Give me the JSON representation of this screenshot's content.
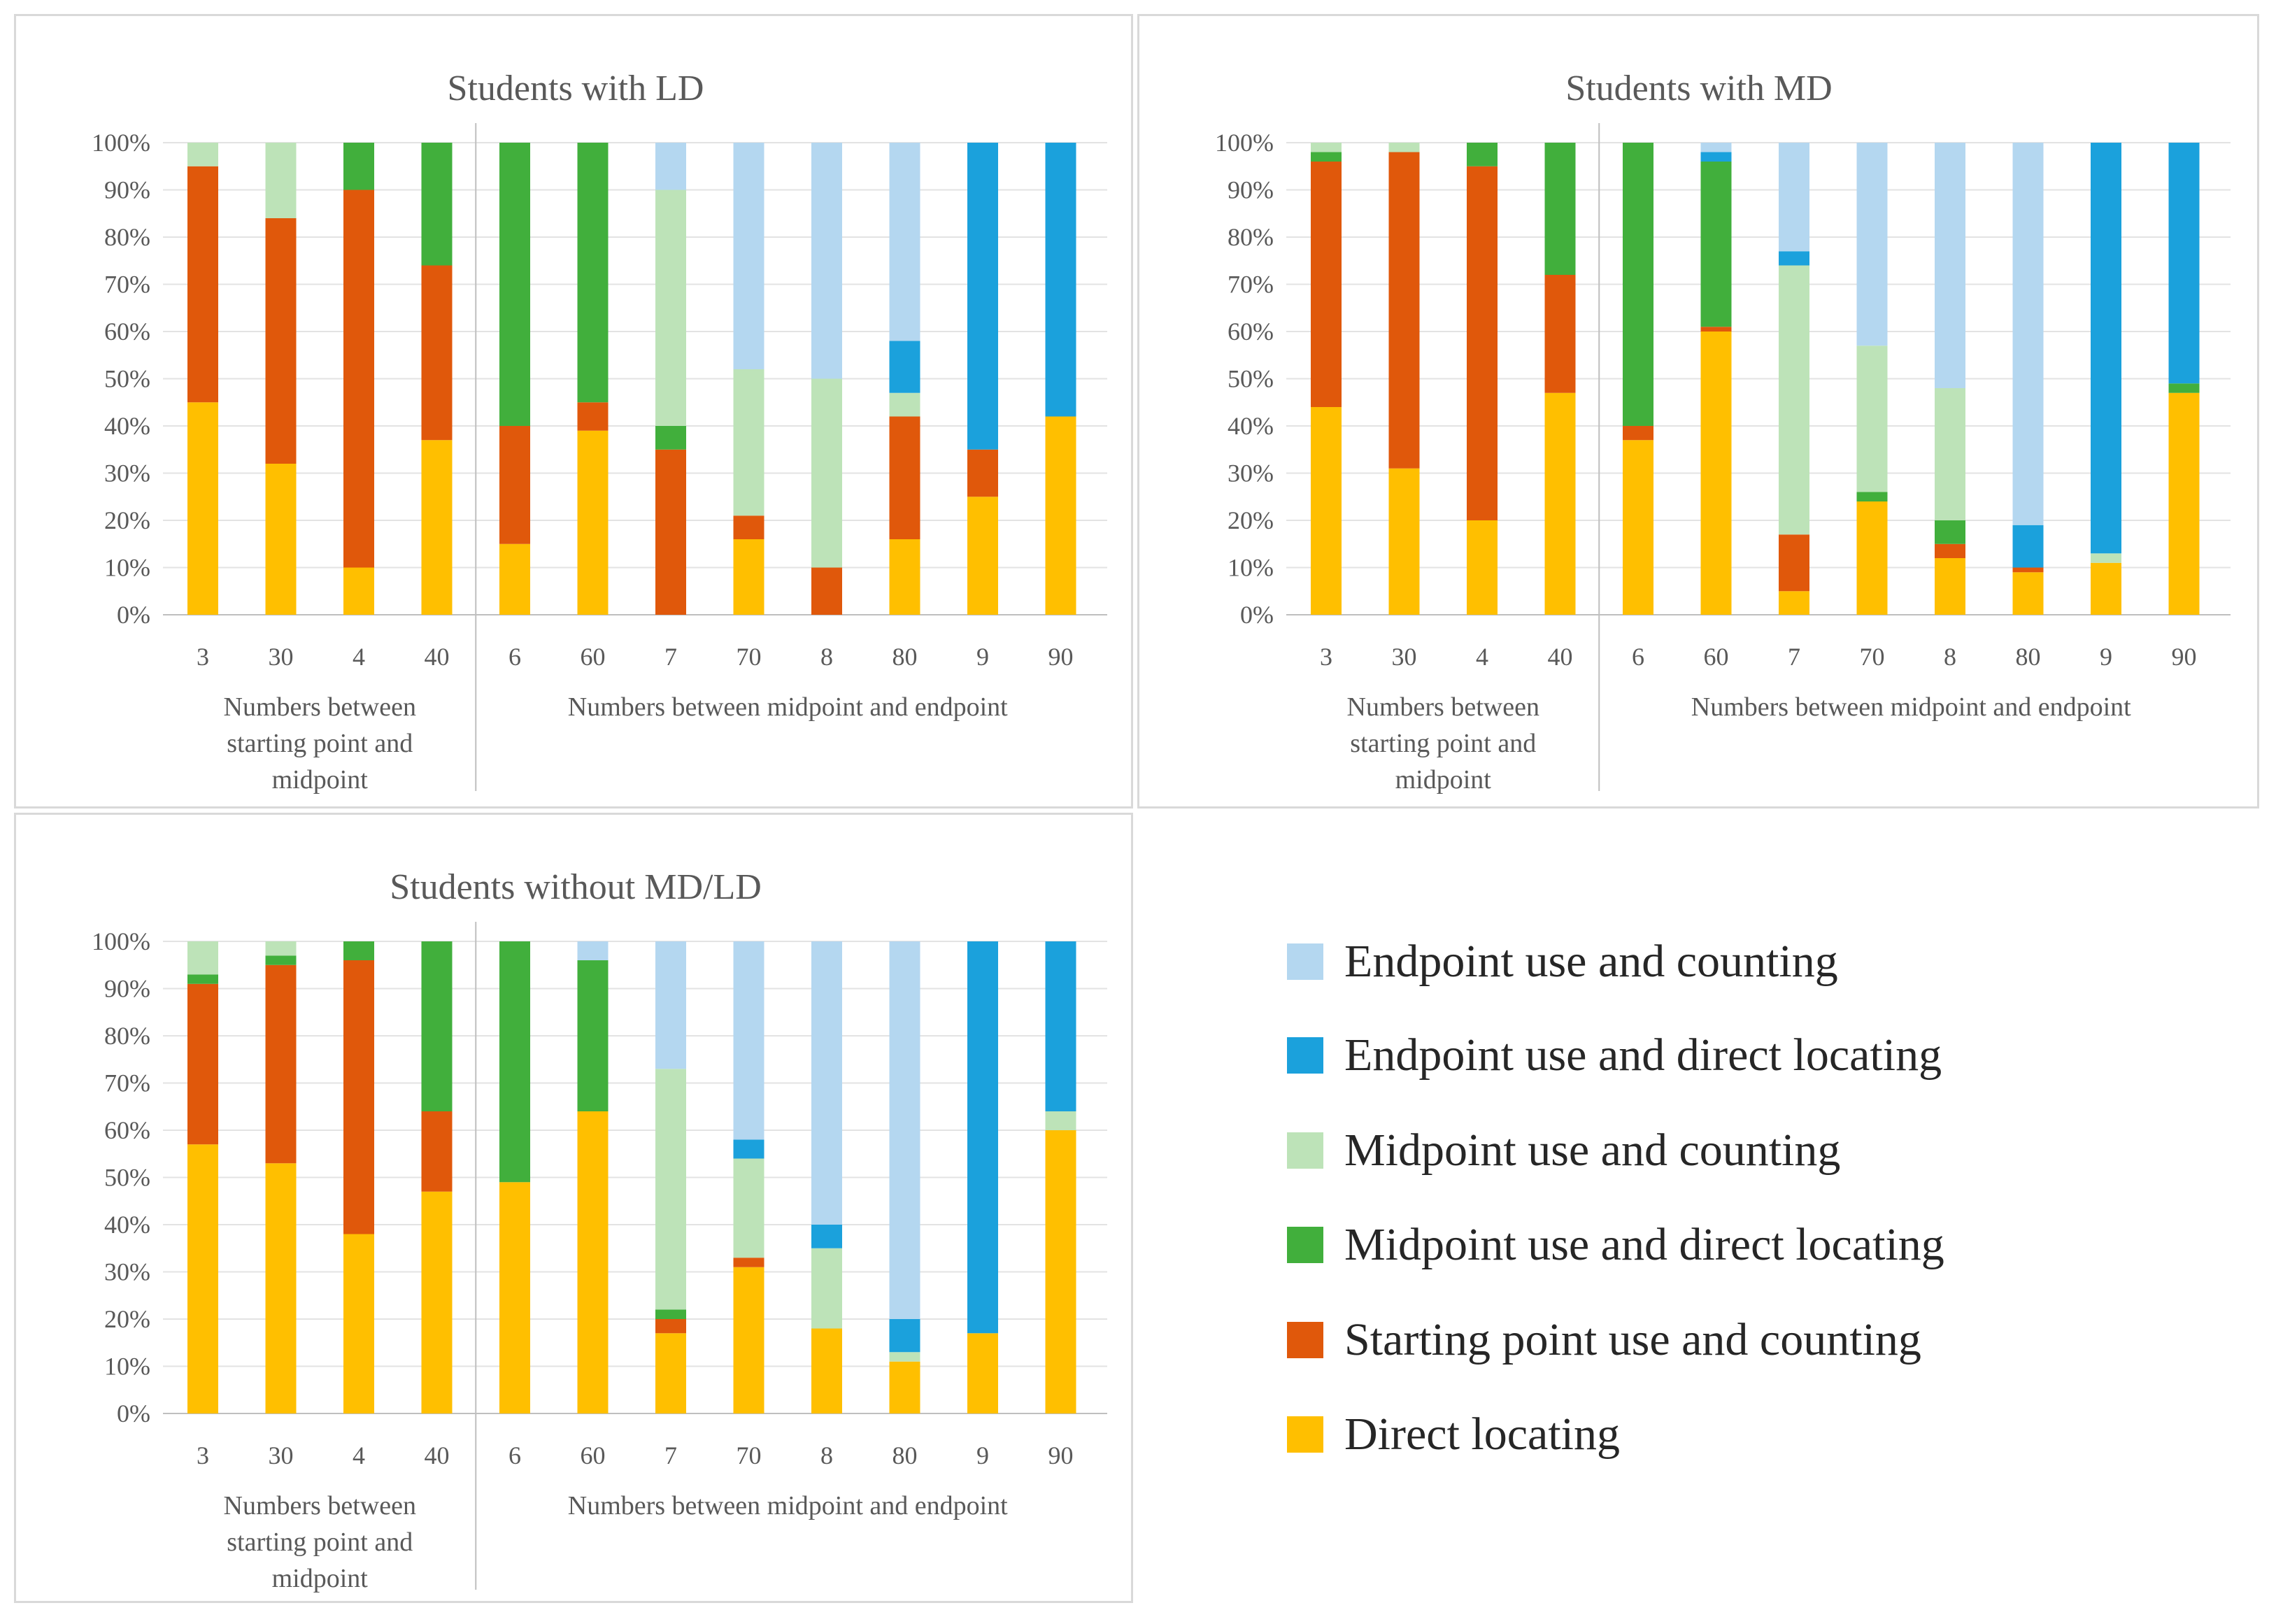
{
  "chart_data": [
    {
      "type": "bar",
      "stacked": true,
      "title": "Students with LD",
      "categories": [
        "3",
        "30",
        "4",
        "40",
        "6",
        "60",
        "7",
        "70",
        "8",
        "80",
        "9",
        "90"
      ],
      "group_labels": [
        {
          "text": [
            "Numbers between",
            "starting point and",
            "midpoint"
          ],
          "span": [
            0,
            3
          ]
        },
        {
          "text": [
            "Numbers between midpoint and endpoint"
          ],
          "span": [
            4,
            11
          ]
        }
      ],
      "yticks": [
        "0%",
        "10%",
        "20%",
        "30%",
        "40%",
        "50%",
        "60%",
        "70%",
        "80%",
        "90%",
        "100%"
      ],
      "ylim": [
        0,
        100
      ],
      "series": [
        {
          "name": "Direct locating",
          "values": [
            45,
            32,
            10,
            37,
            15,
            39,
            0,
            16,
            0,
            16,
            25,
            42
          ]
        },
        {
          "name": "Starting point use and counting",
          "values": [
            50,
            52,
            80,
            37,
            25,
            6,
            35,
            5,
            10,
            26,
            10,
            0
          ]
        },
        {
          "name": "Midpoint use and direct locating",
          "values": [
            0,
            0,
            10,
            26,
            60,
            55,
            5,
            0,
            0,
            0,
            0,
            0
          ]
        },
        {
          "name": "Midpoint use and counting",
          "values": [
            5,
            16,
            0,
            0,
            0,
            0,
            50,
            31,
            40,
            5,
            0,
            0
          ]
        },
        {
          "name": "Endpoint use and direct locating",
          "values": [
            0,
            0,
            0,
            0,
            0,
            0,
            0,
            0,
            0,
            11,
            65,
            58
          ]
        },
        {
          "name": "Endpoint use and counting",
          "values": [
            0,
            0,
            0,
            0,
            0,
            0,
            10,
            48,
            50,
            42,
            0,
            0
          ]
        }
      ]
    },
    {
      "type": "bar",
      "stacked": true,
      "title": "Students with MD",
      "categories": [
        "3",
        "30",
        "4",
        "40",
        "6",
        "60",
        "7",
        "70",
        "8",
        "80",
        "9",
        "90"
      ],
      "group_labels": [
        {
          "text": [
            "Numbers between",
            "starting point and",
            "midpoint"
          ],
          "span": [
            0,
            3
          ]
        },
        {
          "text": [
            "Numbers between midpoint and endpoint"
          ],
          "span": [
            4,
            11
          ]
        }
      ],
      "yticks": [
        "0%",
        "10%",
        "20%",
        "30%",
        "40%",
        "50%",
        "60%",
        "70%",
        "80%",
        "90%",
        "100%"
      ],
      "ylim": [
        0,
        100
      ],
      "series": [
        {
          "name": "Direct locating",
          "values": [
            44,
            31,
            20,
            47,
            37,
            60,
            5,
            24,
            12,
            9,
            11,
            47
          ]
        },
        {
          "name": "Starting point use and counting",
          "values": [
            52,
            67,
            75,
            25,
            3,
            1,
            12,
            0,
            3,
            1,
            0,
            0
          ]
        },
        {
          "name": "Midpoint use and direct locating",
          "values": [
            2,
            0,
            5,
            28,
            60,
            35,
            0,
            2,
            5,
            0,
            0,
            2
          ]
        },
        {
          "name": "Midpoint use and counting",
          "values": [
            2,
            2,
            0,
            0,
            0,
            0,
            57,
            31,
            28,
            0,
            2,
            0
          ]
        },
        {
          "name": "Endpoint use and direct locating",
          "values": [
            0,
            0,
            0,
            0,
            0,
            2,
            3,
            0,
            0,
            9,
            87,
            51
          ]
        },
        {
          "name": "Endpoint use and counting",
          "values": [
            0,
            0,
            0,
            0,
            0,
            2,
            23,
            43,
            52,
            81,
            0,
            0
          ]
        }
      ]
    },
    {
      "type": "bar",
      "stacked": true,
      "title": "Students without MD/LD",
      "categories": [
        "3",
        "30",
        "4",
        "40",
        "6",
        "60",
        "7",
        "70",
        "8",
        "80",
        "9",
        "90"
      ],
      "group_labels": [
        {
          "text": [
            "Numbers between",
            "starting point and",
            "midpoint"
          ],
          "span": [
            0,
            3
          ]
        },
        {
          "text": [
            "Numbers between midpoint and endpoint"
          ],
          "span": [
            4,
            11
          ]
        }
      ],
      "yticks": [
        "0%",
        "10%",
        "20%",
        "30%",
        "40%",
        "50%",
        "60%",
        "70%",
        "80%",
        "90%",
        "100%"
      ],
      "ylim": [
        0,
        100
      ],
      "series": [
        {
          "name": "Direct locating",
          "values": [
            57,
            53,
            38,
            47,
            49,
            64,
            17,
            31,
            18,
            11,
            17,
            60
          ]
        },
        {
          "name": "Starting point use and counting",
          "values": [
            34,
            42,
            58,
            17,
            0,
            0,
            3,
            2,
            0,
            0,
            0,
            0
          ]
        },
        {
          "name": "Midpoint use and direct locating",
          "values": [
            2,
            2,
            4,
            36,
            51,
            32,
            2,
            0,
            0,
            0,
            0,
            0
          ]
        },
        {
          "name": "Midpoint use and counting",
          "values": [
            7,
            3,
            0,
            0,
            0,
            0,
            51,
            21,
            17,
            2,
            0,
            4
          ]
        },
        {
          "name": "Endpoint use and direct locating",
          "values": [
            0,
            0,
            0,
            0,
            0,
            0,
            0,
            4,
            5,
            7,
            83,
            36
          ]
        },
        {
          "name": "Endpoint use and counting",
          "values": [
            0,
            0,
            0,
            0,
            0,
            4,
            27,
            42,
            60,
            80,
            0,
            0
          ]
        }
      ]
    }
  ],
  "legend": [
    {
      "name": "Endpoint use and counting",
      "color": "#b4d7f0"
    },
    {
      "name": "Endpoint use and direct locating",
      "color": "#1ba1dc"
    },
    {
      "name": "Midpoint use and counting",
      "color": "#bde3b8"
    },
    {
      "name": "Midpoint use and direct locating",
      "color": "#41af3c"
    },
    {
      "name": "Starting point use and counting",
      "color": "#e0580b"
    },
    {
      "name": "Direct locating",
      "color": "#ffbf00"
    }
  ],
  "colors": {
    "Direct locating": "#ffbf00",
    "Starting point use and counting": "#e0580b",
    "Midpoint use and direct locating": "#41af3c",
    "Midpoint use and counting": "#bde3b8",
    "Endpoint use and direct locating": "#1ba1dc",
    "Endpoint use and counting": "#b4d7f0"
  }
}
